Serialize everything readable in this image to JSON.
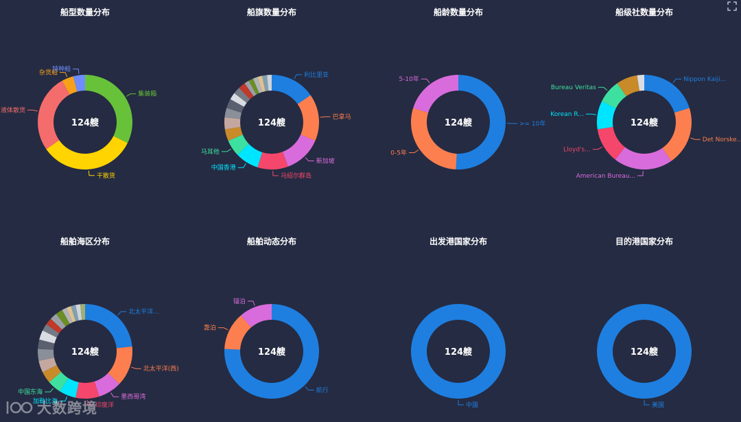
{
  "watermark": {
    "text": "大数跨境"
  },
  "icons": {
    "fullscreen": "expand-icon",
    "logo": "logo-icon"
  },
  "chart_data": [
    {
      "type": "pie",
      "title": "船型数量分布",
      "center_label": "124艘",
      "slices": [
        {
          "name": "集装箱",
          "value": 40,
          "color": "#67c23a",
          "labeled": true
        },
        {
          "name": "干散货",
          "value": 41,
          "color": "#ffd400",
          "labeled": true
        },
        {
          "name": "液体散货",
          "value": 33,
          "color": "#f56c6c",
          "labeled": true
        },
        {
          "name": "杂货船",
          "value": 5,
          "color": "#f7a11a",
          "labeled": true
        },
        {
          "name": "特种船",
          "value": 5,
          "color": "#6e8cff",
          "labeled": true
        }
      ]
    },
    {
      "type": "pie",
      "title": "船旗数量分布",
      "center_label": "124艘",
      "slices": [
        {
          "name": "利比里亚",
          "value": 19,
          "color": "#1e7fe0",
          "labeled": true
        },
        {
          "name": "巴拿马",
          "value": 20,
          "color": "#fd7f4f",
          "labeled": true
        },
        {
          "name": "新加坡",
          "value": 16,
          "color": "#d96cdc",
          "labeled": true
        },
        {
          "name": "马绍尔群岛",
          "value": 13,
          "color": "#f4476b",
          "labeled": true
        },
        {
          "name": "中国香港",
          "value": 10,
          "color": "#00e5ff",
          "labeled": true
        },
        {
          "name": "马耳他",
          "value": 7,
          "color": "#3ee0a0",
          "labeled": true
        },
        {
          "name": "",
          "value": 5,
          "color": "#c98a2a",
          "labeled": false
        },
        {
          "name": "",
          "value": 5,
          "color": "#c4a8a0",
          "labeled": false
        },
        {
          "name": "",
          "value": 4,
          "color": "#8a8f99",
          "labeled": false
        },
        {
          "name": "",
          "value": 4,
          "color": "#5a6070",
          "labeled": false
        },
        {
          "name": "",
          "value": 3,
          "color": "#d9dce3",
          "labeled": false
        },
        {
          "name": "",
          "value": 3,
          "color": "#757b86",
          "labeled": false
        },
        {
          "name": "",
          "value": 3,
          "color": "#c0392b",
          "labeled": false
        },
        {
          "name": "",
          "value": 2,
          "color": "#9aa0a8",
          "labeled": false
        },
        {
          "name": "",
          "value": 2,
          "color": "#6b8e23",
          "labeled": false
        },
        {
          "name": "",
          "value": 2,
          "color": "#b0b4bb",
          "labeled": false
        },
        {
          "name": "",
          "value": 2,
          "color": "#e0c090",
          "labeled": false
        },
        {
          "name": "",
          "value": 2,
          "color": "#7fa0b0",
          "labeled": false
        },
        {
          "name": "",
          "value": 2,
          "color": "#cfd3da",
          "labeled": false
        }
      ]
    },
    {
      "type": "pie",
      "title": "船龄数量分布",
      "center_label": "124艘",
      "slices": [
        {
          "name": ">= 10年",
          "value": 63,
          "color": "#1e7fe0",
          "labeled": true
        },
        {
          "name": "0-5年",
          "value": 36,
          "color": "#fd7f4f",
          "labeled": true
        },
        {
          "name": "5-10年",
          "value": 25,
          "color": "#d96cdc",
          "labeled": true
        }
      ]
    },
    {
      "type": "pie",
      "title": "船级社数量分布",
      "center_label": "124艘",
      "slices": [
        {
          "name": "Nippon Kaiji...",
          "value": 25,
          "color": "#1e7fe0",
          "labeled": true
        },
        {
          "name": "Det Norske...",
          "value": 25,
          "color": "#fd7f4f",
          "labeled": true
        },
        {
          "name": "American Bureau...",
          "value": 25,
          "color": "#d96cdc",
          "labeled": true
        },
        {
          "name": "Lloyd's...",
          "value": 15,
          "color": "#f4476b",
          "labeled": true
        },
        {
          "name": "Korean R...",
          "value": 12,
          "color": "#00e5ff",
          "labeled": true
        },
        {
          "name": "Bureau Veritas",
          "value": 10,
          "color": "#3ee0a0",
          "labeled": true
        },
        {
          "name": "",
          "value": 9,
          "color": "#c98a2a",
          "labeled": false
        },
        {
          "name": "",
          "value": 3,
          "color": "#d9dce3",
          "labeled": false
        }
      ]
    },
    {
      "type": "pie",
      "title": "船舶海区分布",
      "center_label": "124艘",
      "slices": [
        {
          "name": "北太平洋...",
          "value": 29,
          "color": "#1e7fe0",
          "labeled": true
        },
        {
          "name": "北太平洋(西)",
          "value": 17,
          "color": "#fd7f4f",
          "labeled": true
        },
        {
          "name": "墨西哥湾",
          "value": 10,
          "color": "#d96cdc",
          "labeled": true
        },
        {
          "name": "印度洋",
          "value": 10,
          "color": "#f4476b",
          "labeled": true
        },
        {
          "name": "加勒比海",
          "value": 7,
          "color": "#00e5ff",
          "labeled": true
        },
        {
          "name": "中国东海",
          "value": 6,
          "color": "#3ee0a0",
          "labeled": true
        },
        {
          "name": "",
          "value": 5,
          "color": "#c98a2a",
          "labeled": false
        },
        {
          "name": "",
          "value": 5,
          "color": "#c4a8a0",
          "labeled": false
        },
        {
          "name": "",
          "value": 5,
          "color": "#8a8f99",
          "labeled": false
        },
        {
          "name": "",
          "value": 4,
          "color": "#5a6070",
          "labeled": false
        },
        {
          "name": "",
          "value": 4,
          "color": "#d9dce3",
          "labeled": false
        },
        {
          "name": "",
          "value": 3,
          "color": "#757b86",
          "labeled": false
        },
        {
          "name": "",
          "value": 3,
          "color": "#c0392b",
          "labeled": false
        },
        {
          "name": "",
          "value": 3,
          "color": "#9aa0a8",
          "labeled": false
        },
        {
          "name": "",
          "value": 3,
          "color": "#6b8e23",
          "labeled": false
        },
        {
          "name": "",
          "value": 2,
          "color": "#b0b4bb",
          "labeled": false
        },
        {
          "name": "",
          "value": 2,
          "color": "#e0c090",
          "labeled": false
        },
        {
          "name": "",
          "value": 2,
          "color": "#7fa0b0",
          "labeled": false
        },
        {
          "name": "",
          "value": 2,
          "color": "#cfd3da",
          "labeled": false
        },
        {
          "name": "",
          "value": 2,
          "color": "#a0b070",
          "labeled": false
        }
      ]
    },
    {
      "type": "pie",
      "title": "船舶动态分布",
      "center_label": "124艘",
      "slices": [
        {
          "name": "航行",
          "value": 94,
          "color": "#1e7fe0",
          "labeled": true
        },
        {
          "name": "靠泊",
          "value": 16,
          "color": "#fd7f4f",
          "labeled": true
        },
        {
          "name": "锚泊",
          "value": 14,
          "color": "#d96cdc",
          "labeled": true
        }
      ]
    },
    {
      "type": "pie",
      "title": "出发港国家分布",
      "center_label": "124艘",
      "slices": [
        {
          "name": "中国",
          "value": 124,
          "color": "#1e7fe0",
          "labeled": true
        }
      ]
    },
    {
      "type": "pie",
      "title": "目的港国家分布",
      "center_label": "124艘",
      "slices": [
        {
          "name": "美国",
          "value": 124,
          "color": "#1e7fe0",
          "labeled": true
        }
      ]
    }
  ]
}
